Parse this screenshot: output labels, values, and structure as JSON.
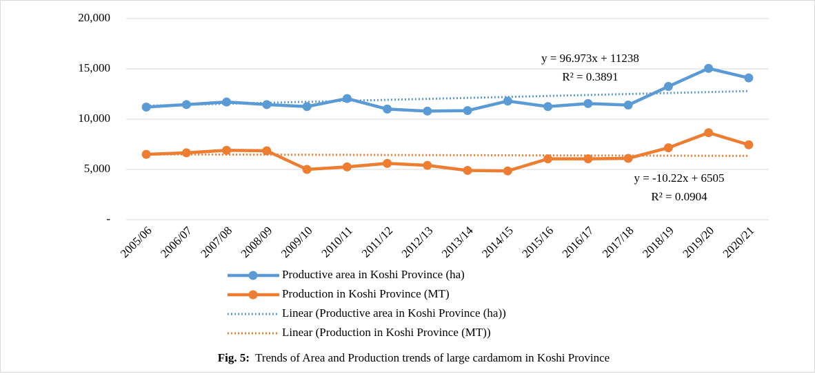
{
  "chart_data": {
    "type": "line",
    "caption_label": "Fig. 5:",
    "caption": "Trends of Area and Production trends of large cardamom in Koshi Province",
    "categories": [
      "2005/06",
      "2006/07",
      "2007/08",
      "2008/09",
      "2009/10",
      "2010/11",
      "2011/12",
      "2012/13",
      "2013/14",
      "2014/15",
      "2015/16",
      "2016/17",
      "2017/18",
      "2018/19",
      "2019/20",
      "2020/21"
    ],
    "series": [
      {
        "name": "Productive area in Koshi Province (ha)",
        "color": "#5b9bd5",
        "style": "solid",
        "markers": true,
        "values": [
          11200,
          11450,
          11700,
          11450,
          11250,
          12050,
          11000,
          10800,
          10850,
          11800,
          11250,
          11550,
          11400,
          13250,
          15050,
          14100
        ]
      },
      {
        "name": "Production in Koshi Province (MT)",
        "color": "#ed7d31",
        "style": "solid",
        "markers": true,
        "values": [
          6500,
          6650,
          6900,
          6850,
          5000,
          5250,
          5600,
          5400,
          4900,
          4850,
          6050,
          6050,
          6100,
          7150,
          8650,
          7450
        ]
      },
      {
        "name": "Linear (Productive area in Koshi Province (ha))",
        "color": "#5b9bd5",
        "style": "dotted",
        "markers": false,
        "values": [
          11335,
          11432,
          11529,
          11626,
          11723,
          11820,
          11917,
          12014,
          12111,
          12208,
          12305,
          12402,
          12499,
          12596,
          12693,
          12790
        ]
      },
      {
        "name": "Linear (Production in Koshi Province (MT))",
        "color": "#ed7d31",
        "style": "dotted",
        "markers": false,
        "values": [
          6495,
          6485,
          6474,
          6464,
          6454,
          6444,
          6433,
          6423,
          6413,
          6403,
          6392,
          6382,
          6372,
          6362,
          6352,
          6341
        ]
      }
    ],
    "annotations": [
      {
        "text": "y = 96.973x + 11238",
        "sub": "R² = 0.3891"
      },
      {
        "text": "y = -10.22x + 6505",
        "sub": "R² = 0.0904"
      }
    ],
    "ylim": [
      0,
      20000
    ],
    "yticks": [
      {
        "value": 0,
        "label": "-"
      },
      {
        "value": 5000,
        "label": "5,000"
      },
      {
        "value": 10000,
        "label": "10,000"
      },
      {
        "value": 15000,
        "label": "15,000"
      },
      {
        "value": 20000,
        "label": "20,000"
      }
    ],
    "grid": true
  }
}
